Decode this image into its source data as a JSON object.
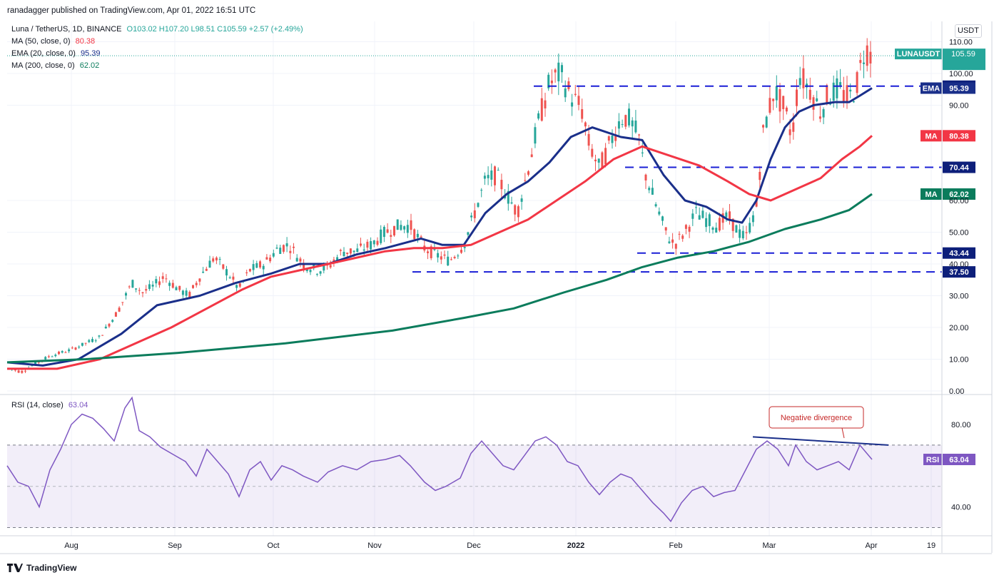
{
  "header": {
    "published": "ranadagger published on TradingView.com, Apr 01, 2022 16:51 UTC"
  },
  "legend": {
    "symbol": "Luna / TetherUS, 1D, BINANCE",
    "ohlc": "O103.02 H107.20 L98.51 C105.59 +2.57 (+2.49%)",
    "ma50": {
      "label": "MA (50, close, 0)",
      "value": "80.38",
      "color": "#f23645"
    },
    "ema20": {
      "label": "EMA (20, close, 0)",
      "value": "95.39",
      "color": "#1a2f8a"
    },
    "ma200": {
      "label": "MA (200, close, 0)",
      "value": "62.02",
      "color": "#0b7c5c"
    },
    "rsi": {
      "label": "RSI (14, close)",
      "value": "63.04",
      "color": "#7e57c2"
    }
  },
  "axis": {
    "unit": "USDT"
  },
  "annotation": {
    "text": "Negative divergence"
  },
  "footer": {
    "brand": "TradingView"
  },
  "chart_data": [
    {
      "type": "line",
      "title": "Luna / TetherUS, 1D, BINANCE",
      "x_ticks": [
        "Aug",
        "Sep",
        "Oct",
        "Nov",
        "Dec",
        "2022",
        "Feb",
        "Mar",
        "Apr",
        "19"
      ],
      "ylim": [
        0,
        110
      ],
      "y_ticks": [
        "0.00",
        "10.00",
        "20.00",
        "30.00",
        "40.00",
        "50.00",
        "60.00",
        "90.00",
        "100.00",
        "110.00"
      ],
      "series": [
        {
          "name": "LUNAUSDT",
          "color": "#26a69a",
          "points": [
            [
              0,
              8
            ],
            [
              30,
              6
            ],
            [
              45,
              8
            ],
            [
              70,
              11
            ],
            [
              100,
              13
            ],
            [
              140,
              17
            ],
            [
              165,
              25
            ],
            [
              185,
              34
            ],
            [
              200,
              31
            ],
            [
              215,
              33
            ],
            [
              230,
              36
            ],
            [
              250,
              32
            ],
            [
              265,
              30
            ],
            [
              280,
              36
            ],
            [
              300,
              42
            ],
            [
              320,
              37
            ],
            [
              335,
              32
            ],
            [
              350,
              38
            ],
            [
              370,
              40
            ],
            [
              390,
              45
            ],
            [
              405,
              46
            ],
            [
              425,
              40
            ],
            [
              445,
              38
            ],
            [
              460,
              39
            ],
            [
              480,
              44
            ],
            [
              500,
              44
            ],
            [
              520,
              46
            ],
            [
              540,
              50
            ],
            [
              560,
              52
            ],
            [
              575,
              52
            ],
            [
              595,
              45
            ],
            [
              610,
              43
            ],
            [
              630,
              41
            ],
            [
              650,
              46
            ],
            [
              665,
              56
            ],
            [
              680,
              66
            ],
            [
              695,
              68
            ],
            [
              710,
              62
            ],
            [
              725,
              56
            ],
            [
              740,
              70
            ],
            [
              755,
              85
            ],
            [
              770,
              97
            ],
            [
              785,
              100
            ],
            [
              800,
              93
            ],
            [
              815,
              89
            ],
            [
              825,
              78
            ],
            [
              840,
              70
            ],
            [
              855,
              78
            ],
            [
              870,
              86
            ],
            [
              880,
              86
            ],
            [
              895,
              80
            ],
            [
              905,
              68
            ],
            [
              920,
              58
            ],
            [
              935,
              49
            ],
            [
              945,
              46
            ],
            [
              960,
              50
            ],
            [
              975,
              56
            ],
            [
              990,
              54
            ],
            [
              1005,
              52
            ],
            [
              1020,
              55
            ],
            [
              1035,
              50
            ],
            [
              1045,
              48
            ],
            [
              1060,
              58
            ],
            [
              1070,
              82
            ],
            [
              1085,
              95
            ],
            [
              1100,
              88
            ],
            [
              1110,
              80
            ],
            [
              1120,
              100
            ],
            [
              1135,
              95
            ],
            [
              1150,
              88
            ],
            [
              1160,
              93
            ],
            [
              1175,
              95
            ],
            [
              1190,
              92
            ],
            [
              1200,
              96
            ],
            [
              1212,
              108
            ],
            [
              1222,
              105.59
            ]
          ]
        },
        {
          "name": "MA 20",
          "color": "#1a2f8a",
          "points": [
            [
              10,
              9
            ],
            [
              60,
              8
            ],
            [
              110,
              10
            ],
            [
              170,
              18
            ],
            [
              220,
              27
            ],
            [
              280,
              30
            ],
            [
              330,
              34
            ],
            [
              380,
              37
            ],
            [
              420,
              40
            ],
            [
              460,
              40
            ],
            [
              500,
              43
            ],
            [
              540,
              45
            ],
            [
              590,
              48
            ],
            [
              620,
              46
            ],
            [
              650,
              46
            ],
            [
              680,
              56
            ],
            [
              710,
              62
            ],
            [
              740,
              66
            ],
            [
              770,
              72
            ],
            [
              800,
              80
            ],
            [
              830,
              83
            ],
            [
              870,
              80
            ],
            [
              900,
              79
            ],
            [
              930,
              68
            ],
            [
              960,
              60
            ],
            [
              990,
              58
            ],
            [
              1020,
              54
            ],
            [
              1040,
              53
            ],
            [
              1060,
              60
            ],
            [
              1080,
              73
            ],
            [
              1100,
              83
            ],
            [
              1120,
              88
            ],
            [
              1140,
              90
            ],
            [
              1170,
              91
            ],
            [
              1190,
              91
            ],
            [
              1205,
              93
            ],
            [
              1222,
              95.39
            ]
          ]
        },
        {
          "name": "MA 50",
          "color": "#f23645",
          "points": [
            [
              10,
              7
            ],
            [
              80,
              7
            ],
            [
              140,
              10
            ],
            [
              190,
              15
            ],
            [
              240,
              20
            ],
            [
              290,
              26
            ],
            [
              340,
              32
            ],
            [
              380,
              36
            ],
            [
              420,
              38
            ],
            [
              460,
              40
            ],
            [
              500,
              42
            ],
            [
              540,
              44
            ],
            [
              580,
              45
            ],
            [
              620,
              45
            ],
            [
              660,
              46
            ],
            [
              700,
              50
            ],
            [
              740,
              54
            ],
            [
              780,
              60
            ],
            [
              820,
              66
            ],
            [
              860,
              73
            ],
            [
              900,
              77
            ],
            [
              940,
              74
            ],
            [
              980,
              71
            ],
            [
              1020,
              66
            ],
            [
              1050,
              62
            ],
            [
              1080,
              60
            ],
            [
              1110,
              63
            ],
            [
              1150,
              67
            ],
            [
              1180,
              73
            ],
            [
              1205,
              77
            ],
            [
              1222,
              80.38
            ]
          ]
        },
        {
          "name": "MA 200",
          "color": "#0b7c5c",
          "points": [
            [
              10,
              9
            ],
            [
              120,
              10
            ],
            [
              250,
              12
            ],
            [
              400,
              15
            ],
            [
              550,
              19
            ],
            [
              650,
              23
            ],
            [
              720,
              26
            ],
            [
              790,
              31
            ],
            [
              850,
              35
            ],
            [
              900,
              39
            ],
            [
              950,
              42
            ],
            [
              1000,
              44
            ],
            [
              1050,
              47
            ],
            [
              1100,
              51
            ],
            [
              1150,
              54
            ],
            [
              1190,
              57
            ],
            [
              1222,
              62.02
            ]
          ]
        }
      ],
      "horizontal_levels": [
        96.0,
        70.44,
        43.44,
        37.5
      ],
      "level_labels": [
        "96.00",
        "70.44",
        "43.44",
        "37.50"
      ]
    },
    {
      "type": "line",
      "title": "RSI (14, close)",
      "ylim": [
        25,
        95
      ],
      "y_ticks": [
        "80.00",
        "40.00"
      ],
      "bands": [
        70,
        30
      ],
      "series": [
        {
          "name": "RSI",
          "color": "#7e57c2",
          "points": [
            [
              10,
              60
            ],
            [
              25,
              52
            ],
            [
              40,
              50
            ],
            [
              55,
              40
            ],
            [
              70,
              58
            ],
            [
              85,
              68
            ],
            [
              100,
              80
            ],
            [
              115,
              85
            ],
            [
              130,
              83
            ],
            [
              145,
              78
            ],
            [
              160,
              72
            ],
            [
              175,
              88
            ],
            [
              185,
              93
            ],
            [
              195,
              77
            ],
            [
              210,
              74
            ],
            [
              225,
              69
            ],
            [
              245,
              65
            ],
            [
              260,
              62
            ],
            [
              275,
              55
            ],
            [
              290,
              68
            ],
            [
              305,
              62
            ],
            [
              320,
              56
            ],
            [
              335,
              45
            ],
            [
              350,
              58
            ],
            [
              365,
              62
            ],
            [
              380,
              53
            ],
            [
              395,
              60
            ],
            [
              410,
              58
            ],
            [
              425,
              55
            ],
            [
              445,
              52
            ],
            [
              460,
              57
            ],
            [
              480,
              60
            ],
            [
              500,
              58
            ],
            [
              520,
              62
            ],
            [
              540,
              63
            ],
            [
              560,
              65
            ],
            [
              575,
              60
            ],
            [
              595,
              52
            ],
            [
              610,
              48
            ],
            [
              625,
              50
            ],
            [
              645,
              54
            ],
            [
              660,
              66
            ],
            [
              675,
              72
            ],
            [
              690,
              66
            ],
            [
              705,
              60
            ],
            [
              720,
              58
            ],
            [
              735,
              65
            ],
            [
              750,
              72
            ],
            [
              765,
              74
            ],
            [
              780,
              70
            ],
            [
              795,
              62
            ],
            [
              810,
              60
            ],
            [
              825,
              52
            ],
            [
              840,
              46
            ],
            [
              855,
              52
            ],
            [
              870,
              56
            ],
            [
              885,
              54
            ],
            [
              900,
              48
            ],
            [
              915,
              42
            ],
            [
              930,
              37
            ],
            [
              940,
              33
            ],
            [
              955,
              42
            ],
            [
              970,
              48
            ],
            [
              985,
              50
            ],
            [
              1000,
              45
            ],
            [
              1015,
              47
            ],
            [
              1030,
              48
            ],
            [
              1045,
              58
            ],
            [
              1060,
              68
            ],
            [
              1075,
              72
            ],
            [
              1090,
              68
            ],
            [
              1105,
              60
            ],
            [
              1115,
              70
            ],
            [
              1130,
              62
            ],
            [
              1145,
              58
            ],
            [
              1160,
              60
            ],
            [
              1175,
              62
            ],
            [
              1190,
              58
            ],
            [
              1205,
              70
            ],
            [
              1222,
              63.04
            ]
          ]
        }
      ],
      "divergence_line": [
        [
          1055,
          74
        ],
        [
          1245,
          70
        ]
      ]
    }
  ]
}
